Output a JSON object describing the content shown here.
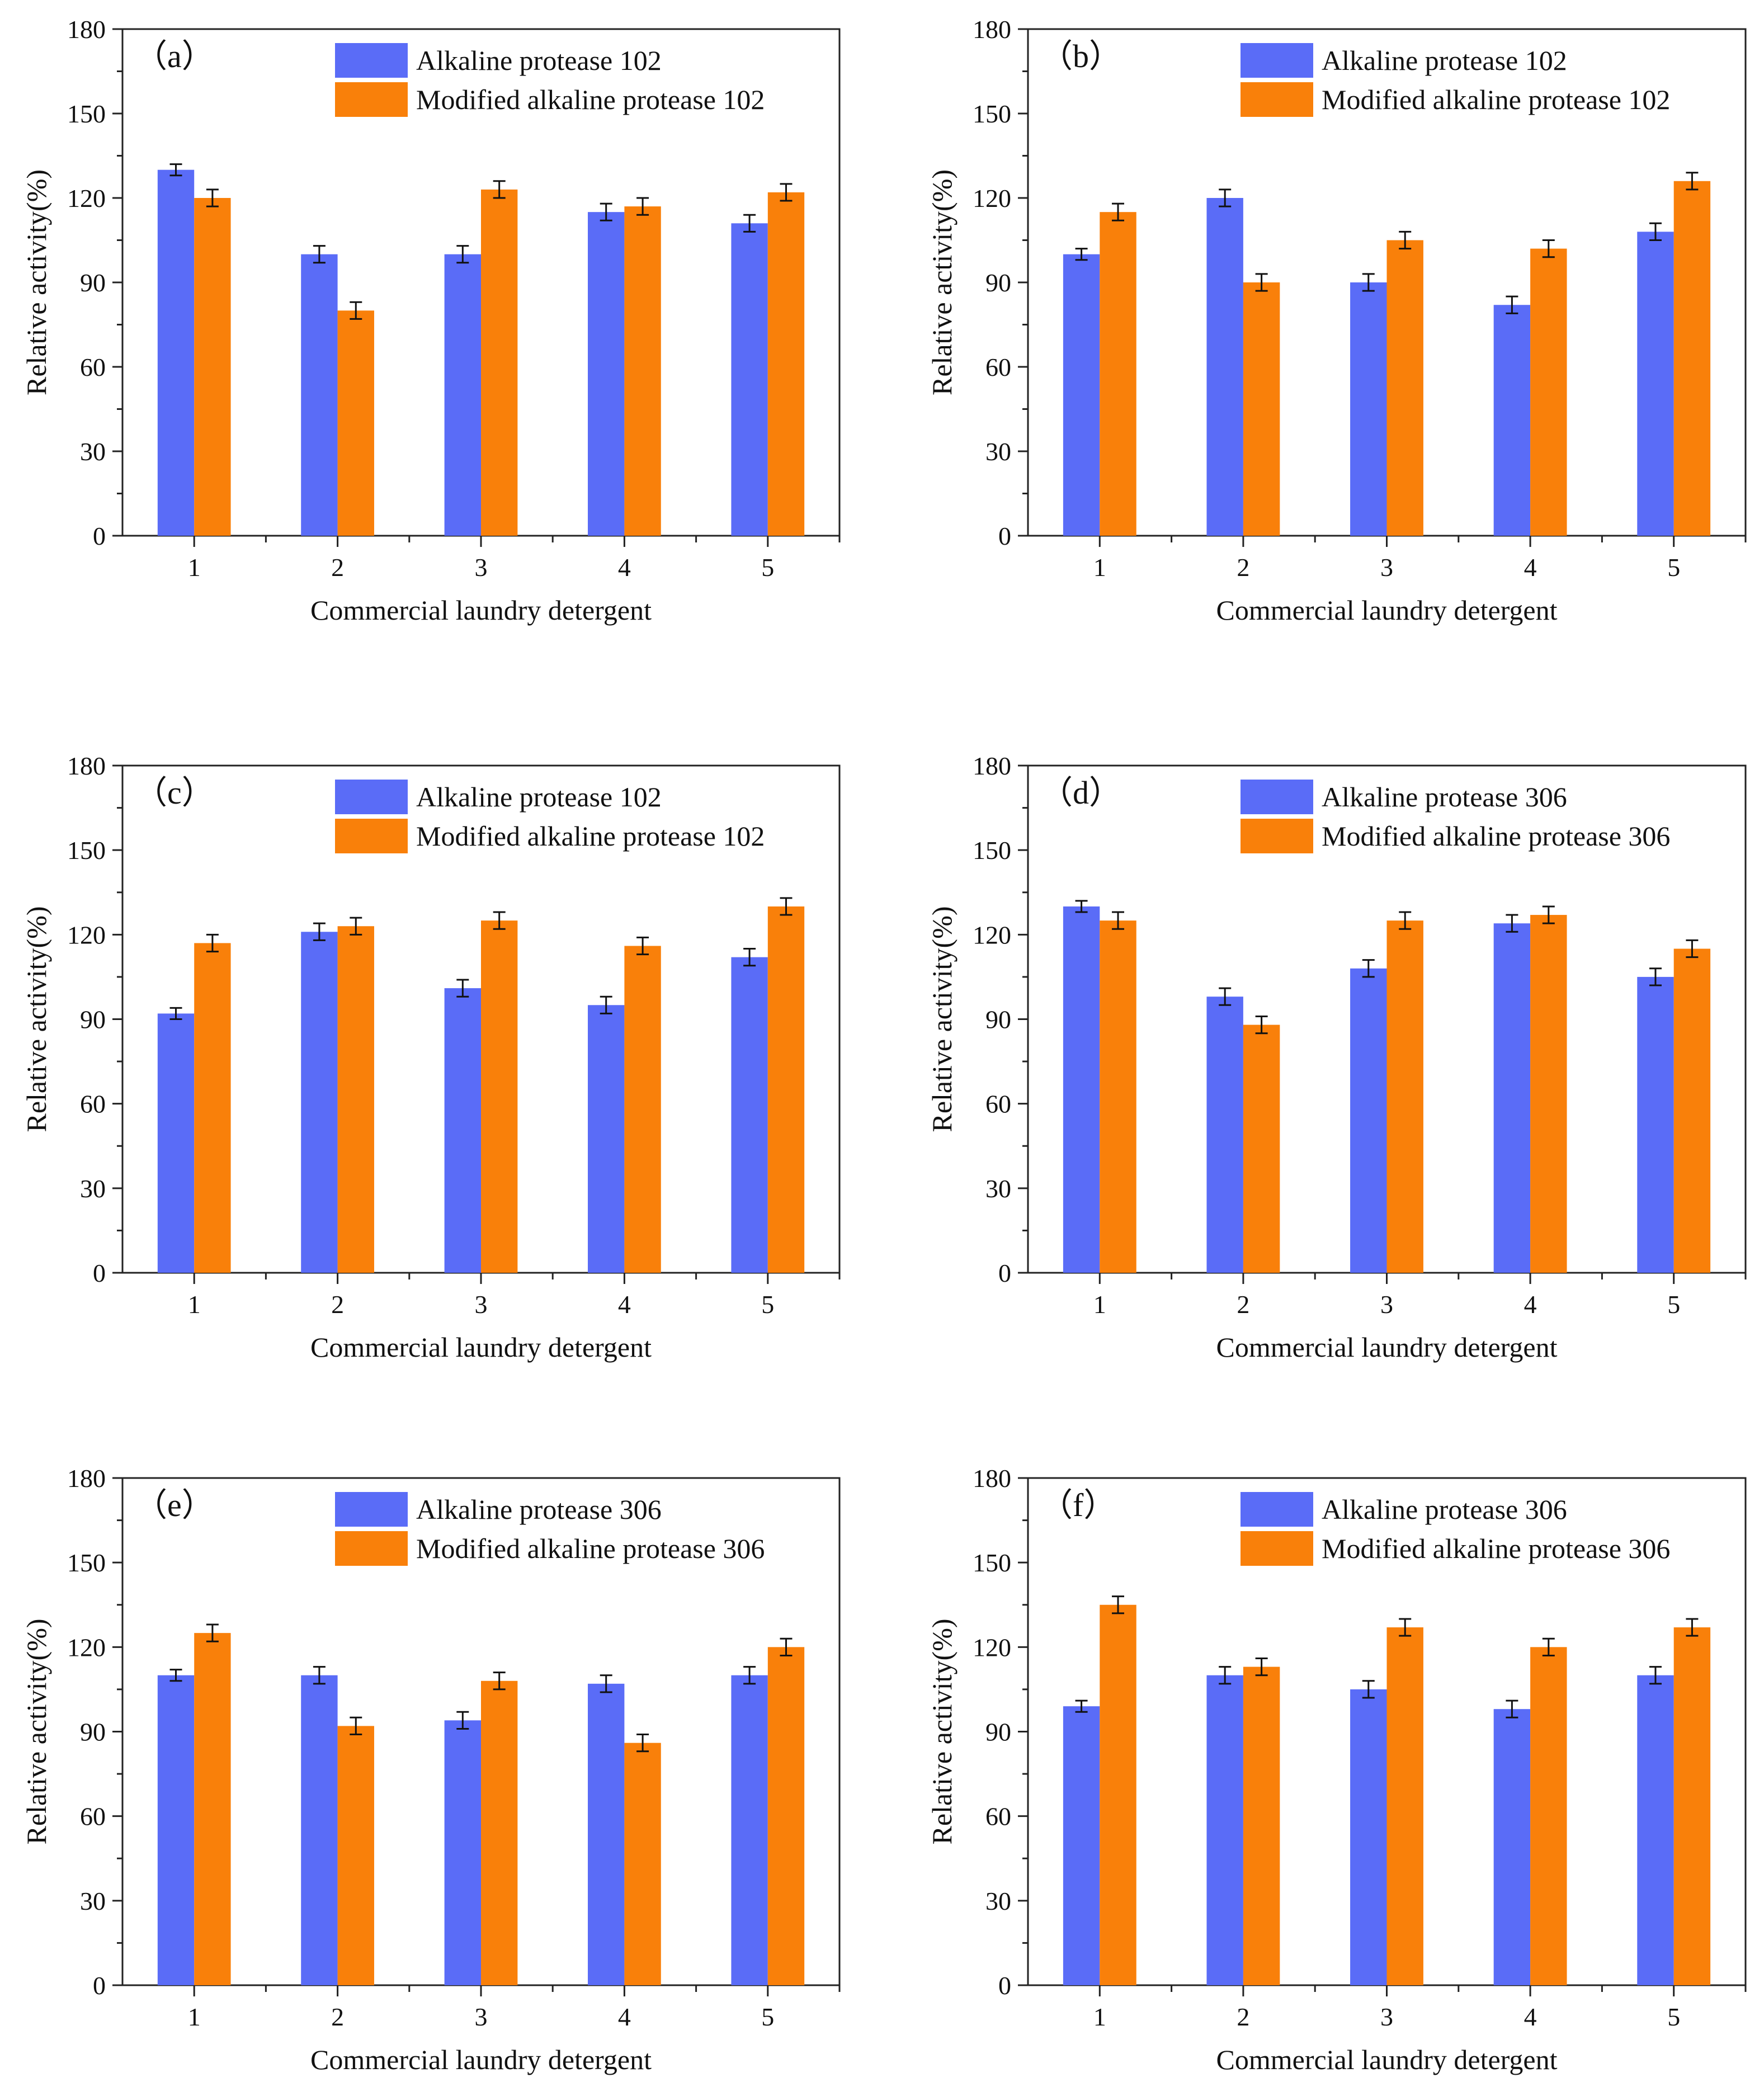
{
  "colors": {
    "series_1": "#5a6cf7",
    "series_2": "#f9800a",
    "axis": "#222222"
  },
  "chart_data": [
    {
      "type": "bar",
      "panel_label": "（a）",
      "categories": [
        "1",
        "2",
        "3",
        "4",
        "5"
      ],
      "series": [
        {
          "name": "Alkaline protease 102",
          "values": [
            130,
            100,
            100,
            115,
            111
          ],
          "errors": [
            2,
            3,
            3,
            3,
            3
          ]
        },
        {
          "name": "Modified alkaline protease 102",
          "values": [
            120,
            80,
            123,
            117,
            122
          ],
          "errors": [
            3,
            3,
            3,
            3,
            3
          ]
        }
      ],
      "xlabel": "Commercial laundry detergent",
      "ylabel": "Relative activity(%)",
      "ylim": [
        0,
        180
      ],
      "yticks": [
        "0",
        "30",
        "60",
        "90",
        "120",
        "150",
        "180"
      ]
    },
    {
      "type": "bar",
      "panel_label": "（b）",
      "categories": [
        "1",
        "2",
        "3",
        "4",
        "5"
      ],
      "series": [
        {
          "name": "Alkaline protease 102",
          "values": [
            100,
            120,
            90,
            82,
            108
          ],
          "errors": [
            2,
            3,
            3,
            3,
            3
          ]
        },
        {
          "name": "Modified alkaline protease 102",
          "values": [
            115,
            90,
            105,
            102,
            126
          ],
          "errors": [
            3,
            3,
            3,
            3,
            3
          ]
        }
      ],
      "xlabel": "Commercial laundry detergent",
      "ylabel": "Relative activity(%)",
      "ylim": [
        0,
        180
      ],
      "yticks": [
        "0",
        "30",
        "60",
        "90",
        "120",
        "150",
        "180"
      ]
    },
    {
      "type": "bar",
      "panel_label": "（c）",
      "categories": [
        "1",
        "2",
        "3",
        "4",
        "5"
      ],
      "series": [
        {
          "name": "Alkaline protease 102",
          "values": [
            92,
            121,
            101,
            95,
            112
          ],
          "errors": [
            2,
            3,
            3,
            3,
            3
          ]
        },
        {
          "name": "Modified alkaline protease 102",
          "values": [
            117,
            123,
            125,
            116,
            130
          ],
          "errors": [
            3,
            3,
            3,
            3,
            3
          ]
        }
      ],
      "xlabel": "Commercial laundry detergent",
      "ylabel": "Relative activity(%)",
      "ylim": [
        0,
        180
      ],
      "yticks": [
        "0",
        "30",
        "60",
        "90",
        "120",
        "150",
        "180"
      ]
    },
    {
      "type": "bar",
      "panel_label": "（d）",
      "categories": [
        "1",
        "2",
        "3",
        "4",
        "5"
      ],
      "series": [
        {
          "name": "Alkaline protease 306",
          "values": [
            130,
            98,
            108,
            124,
            105
          ],
          "errors": [
            2,
            3,
            3,
            3,
            3
          ]
        },
        {
          "name": "Modified alkaline protease 306",
          "values": [
            125,
            88,
            125,
            127,
            115
          ],
          "errors": [
            3,
            3,
            3,
            3,
            3
          ]
        }
      ],
      "xlabel": "Commercial laundry detergent",
      "ylabel": "Relative activity(%)",
      "ylim": [
        0,
        180
      ],
      "yticks": [
        "0",
        "30",
        "60",
        "90",
        "120",
        "150",
        "180"
      ]
    },
    {
      "type": "bar",
      "panel_label": "（e）",
      "categories": [
        "1",
        "2",
        "3",
        "4",
        "5"
      ],
      "series": [
        {
          "name": "Alkaline protease 306",
          "values": [
            110,
            110,
            94,
            107,
            110
          ],
          "errors": [
            2,
            3,
            3,
            3,
            3
          ]
        },
        {
          "name": "Modified alkaline protease 306",
          "values": [
            125,
            92,
            108,
            86,
            120
          ],
          "errors": [
            3,
            3,
            3,
            3,
            3
          ]
        }
      ],
      "xlabel": "Commercial laundry detergent",
      "ylabel": "Relative activity(%)",
      "ylim": [
        0,
        180
      ],
      "yticks": [
        "0",
        "30",
        "60",
        "90",
        "120",
        "150",
        "180"
      ]
    },
    {
      "type": "bar",
      "panel_label": "（f）",
      "categories": [
        "1",
        "2",
        "3",
        "4",
        "5"
      ],
      "series": [
        {
          "name": "Alkaline protease 306",
          "values": [
            99,
            110,
            105,
            98,
            110
          ],
          "errors": [
            2,
            3,
            3,
            3,
            3
          ]
        },
        {
          "name": "Modified alkaline protease 306",
          "values": [
            135,
            113,
            127,
            120,
            127
          ],
          "errors": [
            3,
            3,
            3,
            3,
            3
          ]
        }
      ],
      "xlabel": "Commercial laundry detergent",
      "ylabel": "Relative activity(%)",
      "ylim": [
        0,
        180
      ],
      "yticks": [
        "0",
        "30",
        "60",
        "90",
        "120",
        "150",
        "180"
      ]
    }
  ]
}
